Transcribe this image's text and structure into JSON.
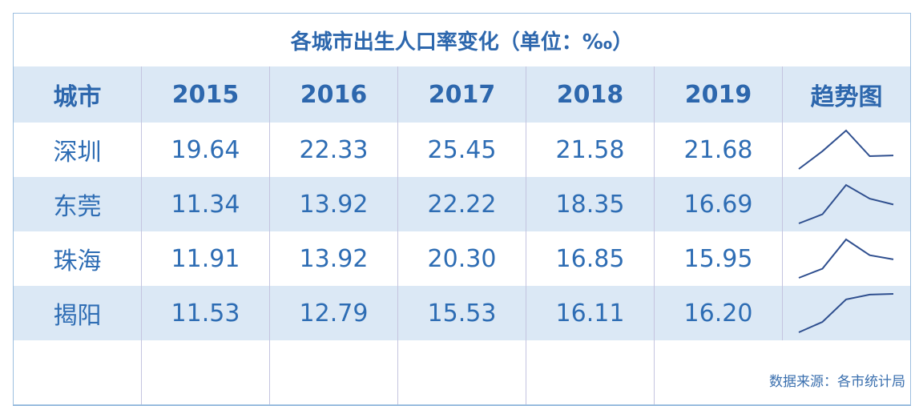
{
  "title": "各城市出生人口率变化（单位：‰）",
  "table": {
    "header": [
      "城市",
      "2015",
      "2016",
      "2017",
      "2018",
      "2019",
      "趋势图"
    ],
    "rows": [
      [
        "深圳",
        "19.64",
        "22.33",
        "25.45",
        "21.58",
        "21.68"
      ],
      [
        "东莞",
        "11.34",
        "13.92",
        "22.22",
        "18.35",
        "16.69"
      ],
      [
        "珠海",
        "11.91",
        "13.92",
        "20.30",
        "16.85",
        "15.95"
      ],
      [
        "揭阳",
        "11.53",
        "12.79",
        "15.53",
        "16.11",
        "16.20"
      ]
    ]
  },
  "source": "数据来源：各市统计局"
}
